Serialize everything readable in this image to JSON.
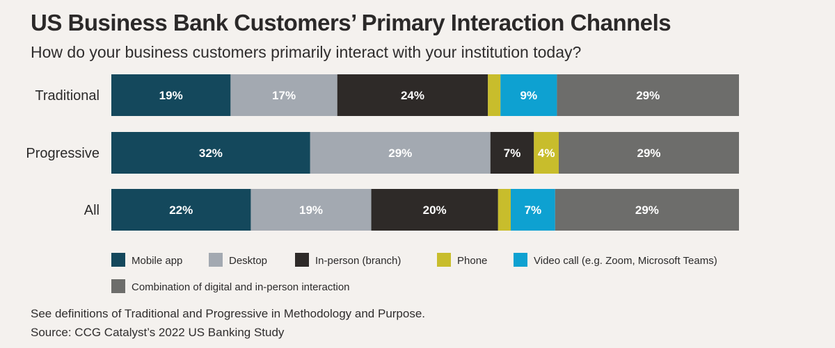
{
  "header": {
    "title": "US Business Bank Customers’ Primary Interaction Channels",
    "subtitle": "How do your business customers primarily interact with your institution today?"
  },
  "footer": {
    "note": "See definitions of Traditional and Progressive in Methodology and Purpose.",
    "source": "Source: CCG Catalyst’s 2022 US Banking Study"
  },
  "chart_data": {
    "type": "bar",
    "orientation": "horizontal-stacked",
    "unit": "%",
    "categories": [
      "Traditional",
      "Progressive",
      "All"
    ],
    "series": [
      {
        "name": "Mobile app",
        "color": "#14485c",
        "values": [
          19,
          32,
          22
        ]
      },
      {
        "name": "Desktop",
        "color": "#a3a9b1",
        "values": [
          17,
          29,
          19
        ]
      },
      {
        "name": "In-person (branch)",
        "color": "#2e2a28",
        "values": [
          24,
          7,
          20
        ]
      },
      {
        "name": "Phone",
        "color": "#c8bd2c",
        "values": [
          2,
          4,
          2
        ]
      },
      {
        "name": "Video call (e.g. Zoom, Microsoft Teams)",
        "color": "#0ea1d1",
        "values": [
          9,
          0,
          7
        ]
      },
      {
        "name": "Combination of digital and in-person interaction",
        "color": "#6d6d6b",
        "values": [
          29,
          29,
          29
        ]
      }
    ],
    "data_labels": [
      [
        "19%",
        "17%",
        "24%",
        "",
        "9%",
        "29%"
      ],
      [
        "32%",
        "29%",
        "7%",
        "4%",
        "",
        "29%"
      ],
      [
        "22%",
        "19%",
        "20%",
        "",
        "7%",
        "29%"
      ]
    ],
    "legend_position": "bottom",
    "grid": false
  }
}
